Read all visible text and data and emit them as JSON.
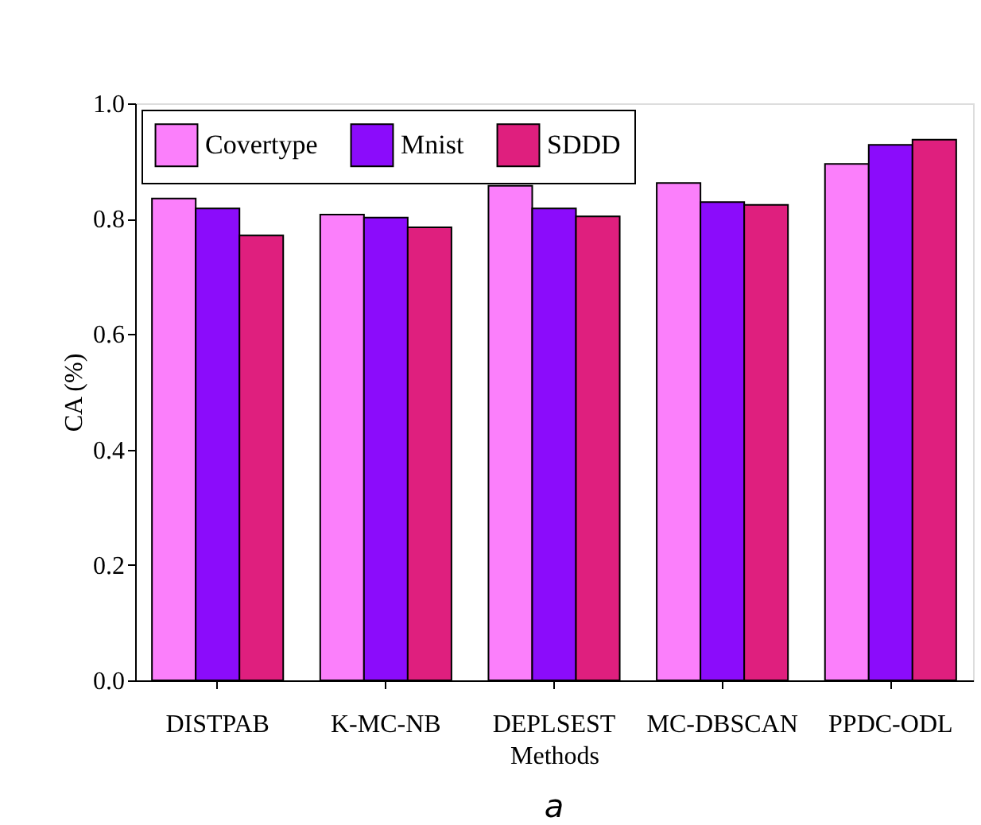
{
  "chart_data": {
    "type": "bar",
    "categories": [
      "DISTPAB",
      "K-MC-NB",
      "DEPLSEST",
      "MC-DBSCAN",
      "PPDC-ODL"
    ],
    "series": [
      {
        "name": "Covertype",
        "color": "#fb7ffb",
        "values": [
          0.835,
          0.807,
          0.857,
          0.862,
          0.895
        ]
      },
      {
        "name": "Mnist",
        "color": "#8b0cfb",
        "values": [
          0.818,
          0.802,
          0.818,
          0.829,
          0.928
        ]
      },
      {
        "name": "SDDD",
        "color": "#df1f7e",
        "values": [
          0.771,
          0.785,
          0.804,
          0.824,
          0.937
        ]
      }
    ],
    "xlabel": "Methods",
    "ylabel": "CA (%)",
    "ylim": [
      0,
      1.0
    ],
    "yticks": [
      {
        "value": 0,
        "label": "0.0"
      },
      {
        "value": 0.2,
        "label": "0.2"
      },
      {
        "value": 0.4,
        "label": "0.4"
      },
      {
        "value": 0.6,
        "label": "0.6"
      },
      {
        "value": 0.8,
        "label": "0.8"
      },
      {
        "value": 1.0,
        "label": "1.0"
      }
    ],
    "annotations": [
      "a"
    ],
    "legend": "top left",
    "grid": false
  }
}
